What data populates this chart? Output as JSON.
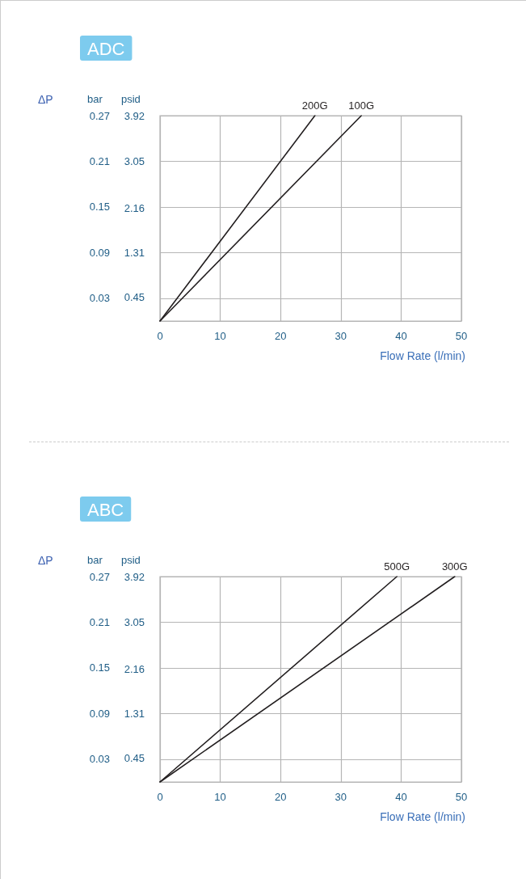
{
  "chart_data": [
    {
      "type": "line",
      "title": "ADC",
      "xlabel": "Flow Rate (l/min)",
      "ylabel": "bar",
      "y2label": "psid",
      "annotations": [
        "ΔP"
      ],
      "series": [
        {
          "name": "200G",
          "color": "#231f20",
          "x": [
            0,
            25.7
          ],
          "values": [
            0,
            0.27
          ]
        },
        {
          "name": "100G",
          "color": "#231f20",
          "x": [
            0,
            33.4
          ],
          "values": [
            0,
            0.27
          ]
        }
      ],
      "xlim": [
        0,
        50
      ],
      "xticks": [
        0,
        10,
        20,
        30,
        40,
        50
      ],
      "ylim": [
        0,
        0.27
      ],
      "yticks": [
        0.03,
        0.09,
        0.15,
        0.21,
        0.27
      ],
      "y2lim": [
        0,
        3.92
      ],
      "y2ticks": [
        0.45,
        1.31,
        2.16,
        3.05,
        3.92
      ],
      "grid": true,
      "marker": "none",
      "line_style": "solid"
    },
    {
      "type": "line",
      "title": "ABC",
      "xlabel": "Flow Rate (l/min)",
      "ylabel": "bar",
      "y2label": "psid",
      "annotations": [
        "ΔP"
      ],
      "series": [
        {
          "name": "500G",
          "color": "#231f20",
          "x": [
            0,
            39.3
          ],
          "values": [
            0,
            0.27
          ]
        },
        {
          "name": "300G",
          "color": "#231f20",
          "x": [
            0,
            48.9
          ],
          "values": [
            0,
            0.27
          ]
        }
      ],
      "xlim": [
        0,
        50
      ],
      "xticks": [
        0,
        10,
        20,
        30,
        40,
        50
      ],
      "ylim": [
        0,
        0.27
      ],
      "yticks": [
        0.03,
        0.09,
        0.15,
        0.21,
        0.27
      ],
      "y2lim": [
        0,
        3.92
      ],
      "y2ticks": [
        0.45,
        1.31,
        2.16,
        3.05,
        3.92
      ],
      "grid": true,
      "marker": "none",
      "line_style": "solid"
    }
  ]
}
